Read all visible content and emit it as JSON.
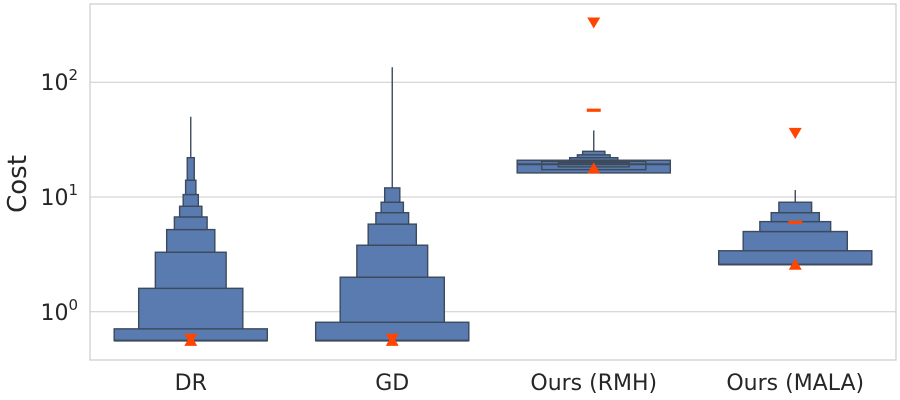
{
  "chart_data": {
    "type": "boxen",
    "title": "",
    "xlabel": "",
    "ylabel": "Cost",
    "yscale": "log",
    "ylim": [
      0.38,
      480
    ],
    "grid": true,
    "y_ticks": [
      {
        "value": 1,
        "base": "10",
        "exp": "0"
      },
      {
        "value": 10,
        "base": "10",
        "exp": "1"
      },
      {
        "value": 100,
        "base": "10",
        "exp": "2"
      }
    ],
    "box_color": "#5a7bb0",
    "marker_color": "#ff4500",
    "categories": [
      "DR",
      "GD",
      "Ours (RMH)",
      "Ours (MALA)"
    ],
    "distributions": [
      {
        "label": "DR",
        "median": 0.56,
        "max": 50,
        "boxes": [
          [
            0.56,
            0.71
          ],
          [
            0.71,
            1.6
          ],
          [
            1.6,
            3.3
          ],
          [
            3.3,
            5.2
          ],
          [
            5.2,
            6.7
          ],
          [
            6.7,
            8.3
          ],
          [
            8.3,
            10.5
          ],
          [
            10.5,
            14
          ],
          [
            14,
            22
          ]
        ],
        "markers": [
          {
            "shape": "triangle-up",
            "value": 0.56
          },
          {
            "shape": "triangle-down",
            "value": 0.58
          }
        ]
      },
      {
        "label": "GD",
        "median": 0.56,
        "max": 135,
        "boxes": [
          [
            0.56,
            0.81
          ],
          [
            0.81,
            2.0
          ],
          [
            2.0,
            3.8
          ],
          [
            3.8,
            5.8
          ],
          [
            5.8,
            7.3
          ],
          [
            7.3,
            9.0
          ],
          [
            9.0,
            12
          ]
        ],
        "markers": [
          {
            "shape": "triangle-up",
            "value": 0.56
          },
          {
            "shape": "triangle-down",
            "value": 0.58
          }
        ]
      },
      {
        "label": "Ours (RMH)",
        "median": 19.3,
        "max": 38,
        "boxes": [
          [
            16.2,
            20.9
          ],
          [
            17.3,
            20.4
          ],
          [
            18.3,
            19.9
          ],
          [
            20.9,
            22
          ],
          [
            22,
            23.3
          ],
          [
            23.3,
            25
          ]
        ],
        "markers": [
          {
            "shape": "triangle-up",
            "value": 17.8
          },
          {
            "shape": "dash",
            "value": 57
          },
          {
            "shape": "triangle-down",
            "value": 330
          }
        ]
      },
      {
        "label": "Ours (MALA)",
        "median": 2.58,
        "max": 11.5,
        "boxes": [
          [
            2.58,
            3.4
          ],
          [
            3.4,
            5.0
          ],
          [
            5.0,
            6.1
          ],
          [
            6.1,
            7.3
          ],
          [
            7.3,
            9
          ]
        ],
        "markers": [
          {
            "shape": "triangle-up",
            "value": 2.58
          },
          {
            "shape": "dash",
            "value": 6.0
          },
          {
            "shape": "triangle-down",
            "value": 36
          }
        ]
      }
    ]
  }
}
